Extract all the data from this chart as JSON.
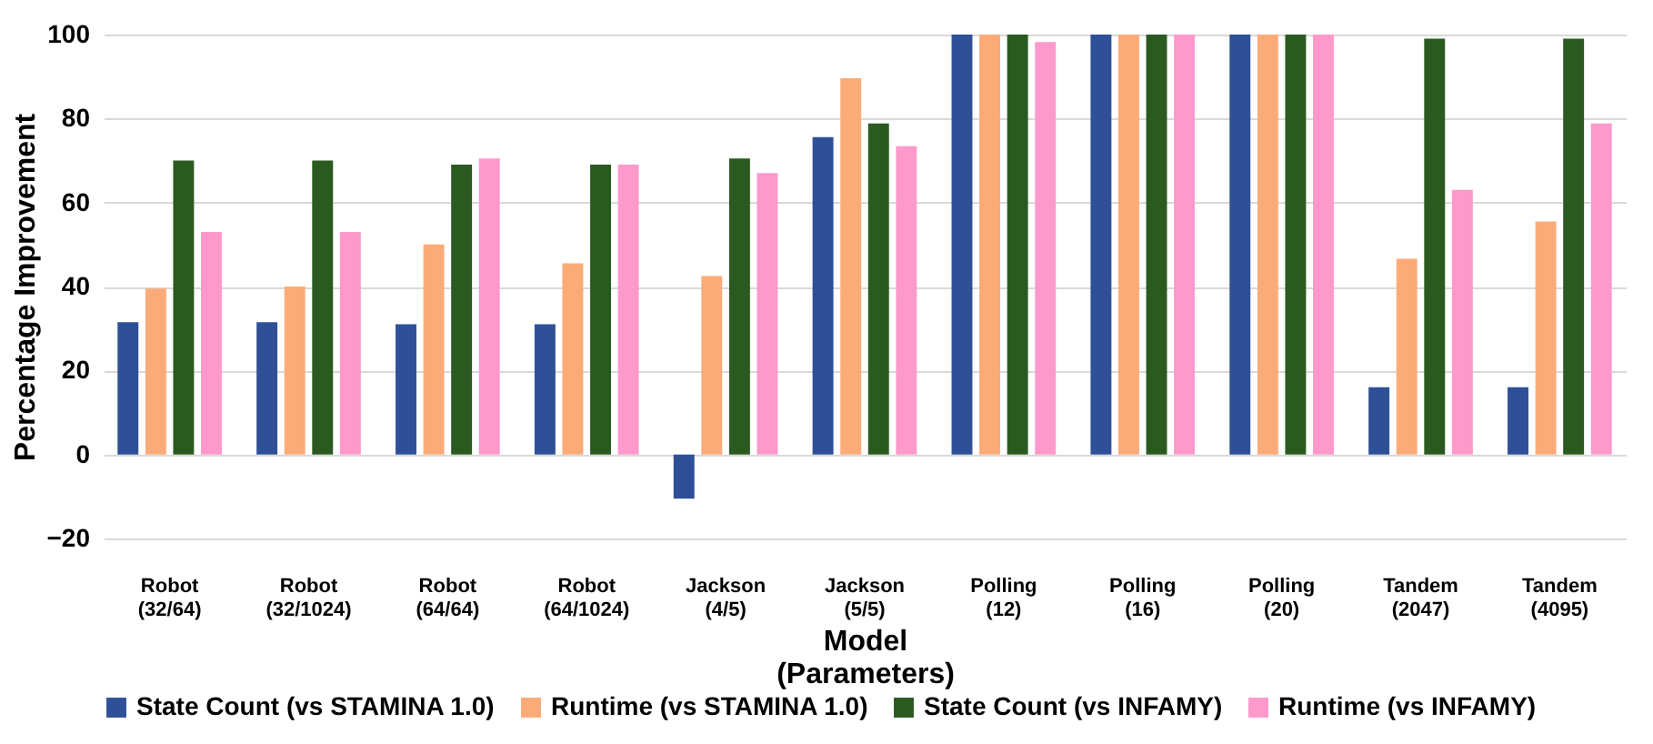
{
  "chart_data": {
    "type": "bar",
    "xlabel": "Model (Parameters)",
    "ylabel": "Percentage Improvement",
    "categories": [
      "Robot (32/64)",
      "Robot (32/1024)",
      "Robot (64/64)",
      "Robot (64/1024)",
      "Jackson (4/5)",
      "Jackson (5/5)",
      "Polling (12)",
      "Polling (16)",
      "Polling (20)",
      "Tandem (2047)",
      "Tandem (4095)"
    ],
    "series": [
      {
        "name": "State Count (vs STAMINA 1.0)",
        "color": "#2f5097",
        "values": [
          31.5,
          31.5,
          31,
          31,
          -10.5,
          75.6,
          100,
          100,
          100,
          16,
          16
        ]
      },
      {
        "name": "Runtime (vs STAMINA 1.0)",
        "color": "#fbab78",
        "values": [
          39.5,
          40,
          50,
          45.5,
          42.5,
          89.6,
          100,
          100,
          100,
          46.6,
          55.5
        ]
      },
      {
        "name": "State Count (vs INFAMY)",
        "color": "#2b5a21",
        "values": [
          70,
          70,
          69,
          69,
          70.5,
          78.8,
          100,
          100,
          100,
          99,
          99
        ]
      },
      {
        "name": "Runtime (vs INFAMY)",
        "color": "#fe99cc",
        "values": [
          53,
          53,
          70.5,
          69,
          67,
          73.4,
          98.2,
          100,
          100,
          63,
          78.8
        ]
      }
    ],
    "ylim": [
      -20,
      100
    ],
    "yticks": [
      -20,
      0,
      20,
      40,
      60,
      80,
      100
    ],
    "grid": "y",
    "legend": "bottom"
  }
}
